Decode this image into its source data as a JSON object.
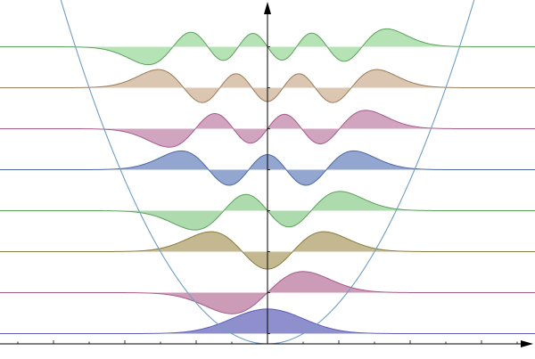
{
  "chart_data": {
    "type": "area",
    "title": "",
    "xlabel": "",
    "ylabel": "",
    "xlim": [
      -7.5,
      7.5
    ],
    "ylim": [
      -0.4,
      16.0
    ],
    "grid": false,
    "legend": "none",
    "potential": {
      "name": "",
      "curve": "0.5*x^2",
      "color": "#6f9ec4"
    },
    "wavefunction_scale": 1.6,
    "series": [
      {
        "n": 0,
        "energy": 0.5,
        "color": "#5d5db8",
        "fill": "#7b7bc6"
      },
      {
        "n": 1,
        "energy": 2.5,
        "color": "#a85a8a",
        "fill": "#c38aac"
      },
      {
        "n": 2,
        "energy": 4.5,
        "color": "#8a7a40",
        "fill": "#b8ab7c"
      },
      {
        "n": 3,
        "energy": 6.5,
        "color": "#5aa05a",
        "fill": "#9fd59f"
      },
      {
        "n": 4,
        "energy": 8.5,
        "color": "#4a66a8",
        "fill": "#7f97c8"
      },
      {
        "n": 5,
        "energy": 10.5,
        "color": "#a85a8a",
        "fill": "#c994b4"
      },
      {
        "n": 6,
        "energy": 12.5,
        "color": "#9a7a58",
        "fill": "#d4bca3"
      },
      {
        "n": 7,
        "energy": 14.5,
        "color": "#5aa05a",
        "fill": "#a9dea9"
      }
    ]
  }
}
